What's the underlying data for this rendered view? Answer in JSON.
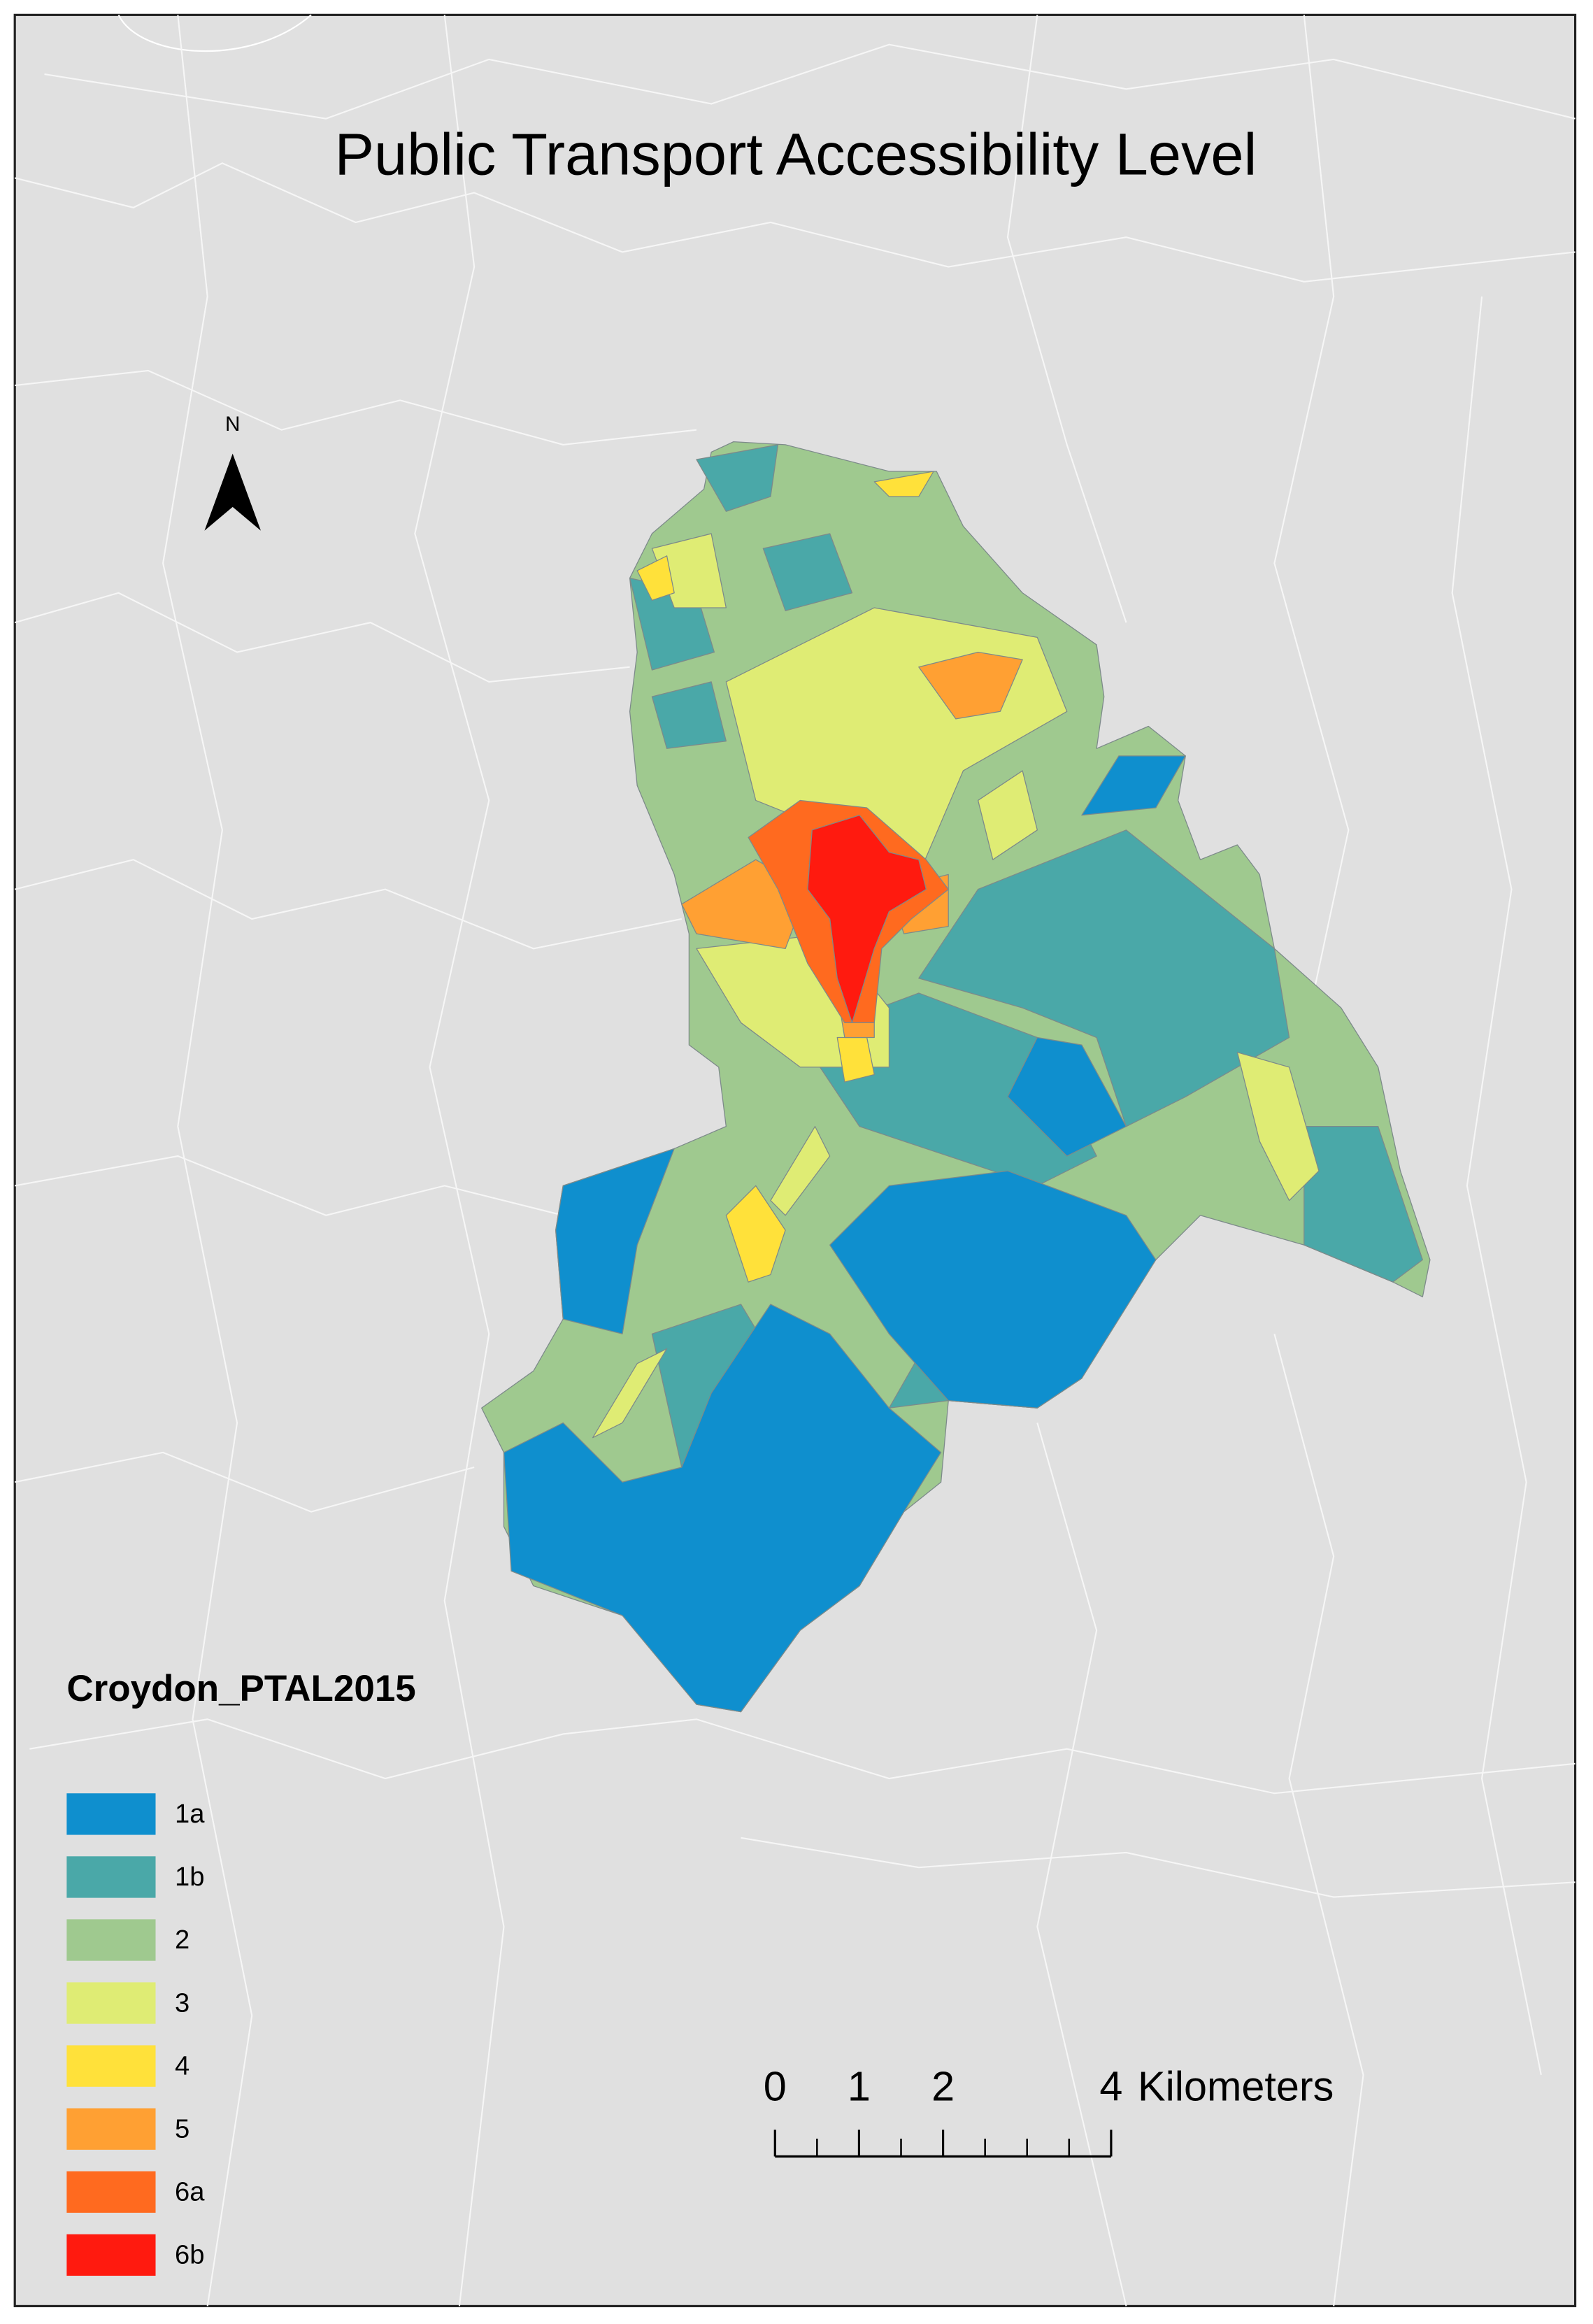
{
  "title": "Public Transport Accessibility Level",
  "north_arrow": {
    "label": "N"
  },
  "legend": {
    "title": "Croydon_PTAL2015",
    "items": [
      {
        "label": "1a",
        "color": "#0f8fce"
      },
      {
        "label": "1b",
        "color": "#4aa8a8"
      },
      {
        "label": "2",
        "color": "#9fc98f"
      },
      {
        "label": "3",
        "color": "#dfec74"
      },
      {
        "label": "4",
        "color": "#ffe13a"
      },
      {
        "label": "5",
        "color": "#ffa033"
      },
      {
        "label": "6a",
        "color": "#ff6a1f"
      },
      {
        "label": "6b",
        "color": "#ff1a0f"
      }
    ]
  },
  "scale_bar": {
    "ticks": [
      0,
      1,
      2,
      4
    ],
    "unit": "Kilometers"
  }
}
